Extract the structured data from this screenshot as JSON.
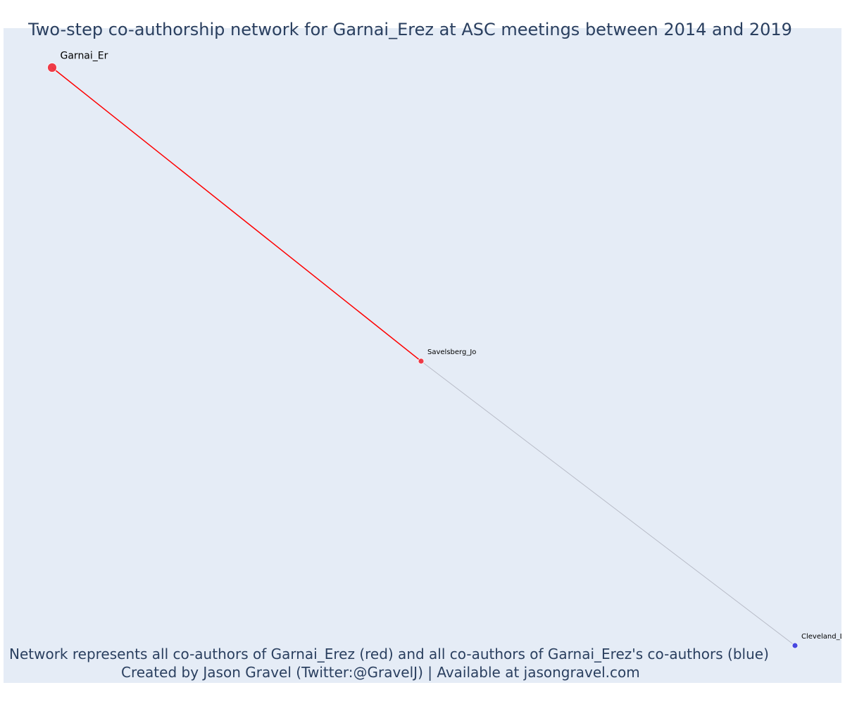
{
  "title": "Two-step co-authorship network for Garnai_Erez at ASC meetings between 2014 and 2019",
  "footer": {
    "line1": "Network represents all co-authors of Garnai_Erez (red) and all co-authors of Garnai_Erez's co-authors (blue)",
    "line2": "Created by Jason Gravel (Twitter:@GravelJ) | Available at jasongravel.com"
  },
  "colors": {
    "plot_background": "#e5ecf6",
    "focal_edge": "#ff0000",
    "secondary_edge": "#b8bcc8",
    "red_node": "#ef3340",
    "blue_node": "#4040e0",
    "text": "#2a3f5f"
  },
  "network": {
    "nodes": [
      {
        "id": "garnai",
        "label": "Garnai_Er",
        "group": "red",
        "role": "focal"
      },
      {
        "id": "savelsberg",
        "label": "Savelsberg_Jo",
        "group": "red",
        "role": "co-author"
      },
      {
        "id": "cleveland",
        "label": "Cleveland_La",
        "group": "blue",
        "role": "second-step"
      }
    ],
    "edges": [
      {
        "source": "garnai",
        "target": "savelsberg",
        "type": "focal"
      },
      {
        "source": "savelsberg",
        "target": "cleveland",
        "type": "secondary"
      }
    ]
  }
}
